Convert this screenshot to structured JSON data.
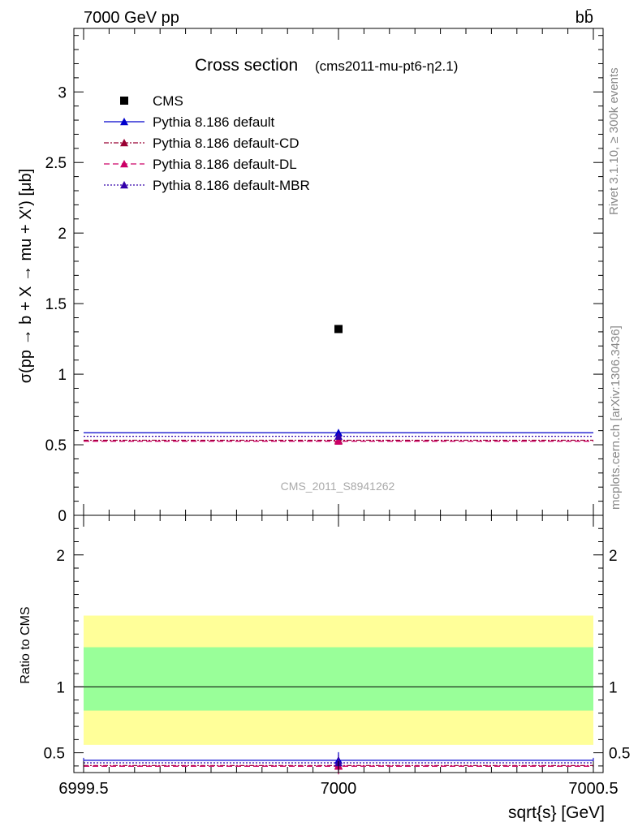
{
  "header": {
    "left": "7000 GeV pp",
    "right": "bb̄"
  },
  "side_labels": {
    "rivet": "Rivet 3.1.10, ≥ 300k events",
    "mcplots": "mcplots.cern.ch [arXiv:1306.3436]"
  },
  "chart_data": [
    {
      "type": "scatter",
      "panel": "main",
      "title": "Cross section",
      "subtitle": "(cms2011-mu-pt6-η2.1)",
      "ylabel": "σ(pp → b + X → mu + X') [μb]",
      "watermark": "CMS_2011_S8941262",
      "xlim": [
        6999.5,
        7000.5
      ],
      "ylim": [
        0,
        3.45
      ],
      "y_ticks": [
        "0",
        "0.5",
        "1",
        "1.5",
        "2",
        "2.5",
        "3"
      ],
      "y_tick_values": [
        0,
        0.5,
        1,
        1.5,
        2,
        2.5,
        3
      ],
      "legend_position": "top-left",
      "series": [
        {
          "name": "CMS",
          "kind": "data",
          "color": "#000000",
          "marker": "square",
          "x": [
            7000
          ],
          "y": [
            1.32
          ]
        },
        {
          "name": "Pythia 8.186 default",
          "kind": "mc",
          "color": "#0000cc",
          "dash": "",
          "marker": "triangle",
          "x": [
            7000
          ],
          "y": [
            0.585
          ]
        },
        {
          "name": "Pythia 8.186 default-CD",
          "kind": "mc",
          "color": "#990033",
          "dash": "6,2,2,2",
          "marker": "triangle",
          "x": [
            7000
          ],
          "y": [
            0.532
          ]
        },
        {
          "name": "Pythia 8.186 default-DL",
          "kind": "mc",
          "color": "#cc0066",
          "dash": "7,4",
          "marker": "triangle",
          "x": [
            7000
          ],
          "y": [
            0.525
          ]
        },
        {
          "name": "Pythia 8.186 default-MBR",
          "kind": "mc",
          "color": "#3300aa",
          "dash": "2,2",
          "marker": "triangle",
          "x": [
            7000
          ],
          "y": [
            0.56
          ]
        }
      ]
    },
    {
      "type": "line",
      "panel": "ratio",
      "xlabel": "sqrt{s} [GeV]",
      "ylabel": "Ratio to CMS",
      "xlim": [
        6999.5,
        7000.5
      ],
      "ylim": [
        0.35,
        2.3
      ],
      "x_ticks": [
        "6999.5",
        "7000",
        "7000.5"
      ],
      "x_tick_values": [
        6999.5,
        7000,
        7000.5
      ],
      "y_ticks": [
        "0.5",
        "1",
        "2"
      ],
      "y_tick_values": [
        0.5,
        1,
        2
      ],
      "bands": [
        {
          "name": "total uncertainty",
          "color": "#ffff99",
          "low": 0.56,
          "high": 1.54
        },
        {
          "name": "stat uncertainty",
          "color": "#99ff99",
          "low": 0.82,
          "high": 1.3
        }
      ],
      "reference_line": 1,
      "series": [
        {
          "name": "Pythia 8.186 default",
          "color": "#0000cc",
          "dash": "",
          "x": [
            7000
          ],
          "y": [
            0.443
          ]
        },
        {
          "name": "Pythia 8.186 default-CD",
          "color": "#990033",
          "dash": "6,2,2,2",
          "x": [
            7000
          ],
          "y": [
            0.403
          ]
        },
        {
          "name": "Pythia 8.186 default-DL",
          "color": "#cc0066",
          "dash": "7,4",
          "x": [
            7000
          ],
          "y": [
            0.398
          ]
        },
        {
          "name": "Pythia 8.186 default-MBR",
          "color": "#3300aa",
          "dash": "2,2",
          "x": [
            7000
          ],
          "y": [
            0.424
          ]
        }
      ]
    }
  ]
}
